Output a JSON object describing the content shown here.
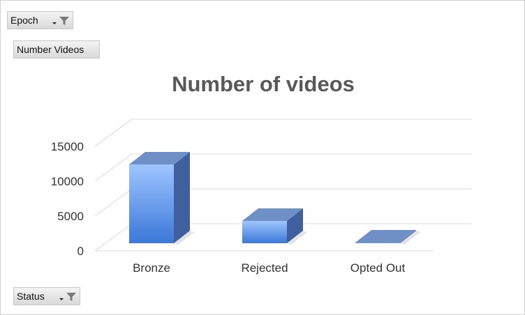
{
  "filters": {
    "epoch": {
      "label": "Epoch",
      "icon": "filter-icon"
    },
    "values_field": {
      "label": "Number Videos"
    },
    "status": {
      "label": "Status",
      "icon": "filter-icon"
    }
  },
  "colors": {
    "bar_front_top": "#9ec5ff",
    "bar_front_bottom": "#3b78d8",
    "bar_top": "#6f8fc7",
    "bar_side": "#3f5f9e",
    "gridline": "#d9d9d9",
    "title": "#595959"
  },
  "chart_data": {
    "type": "bar",
    "title": "Number of videos",
    "categories": [
      "Bronze",
      "Rejected",
      "Opted Out"
    ],
    "series": [
      {
        "values": [
          11300,
          3200,
          100
        ]
      }
    ],
    "yticks": [
      "0",
      "5000",
      "10000",
      "15000"
    ],
    "ylim": [
      0,
      15000
    ],
    "grid": true,
    "legend": false,
    "xlabel": "",
    "ylabel": ""
  }
}
